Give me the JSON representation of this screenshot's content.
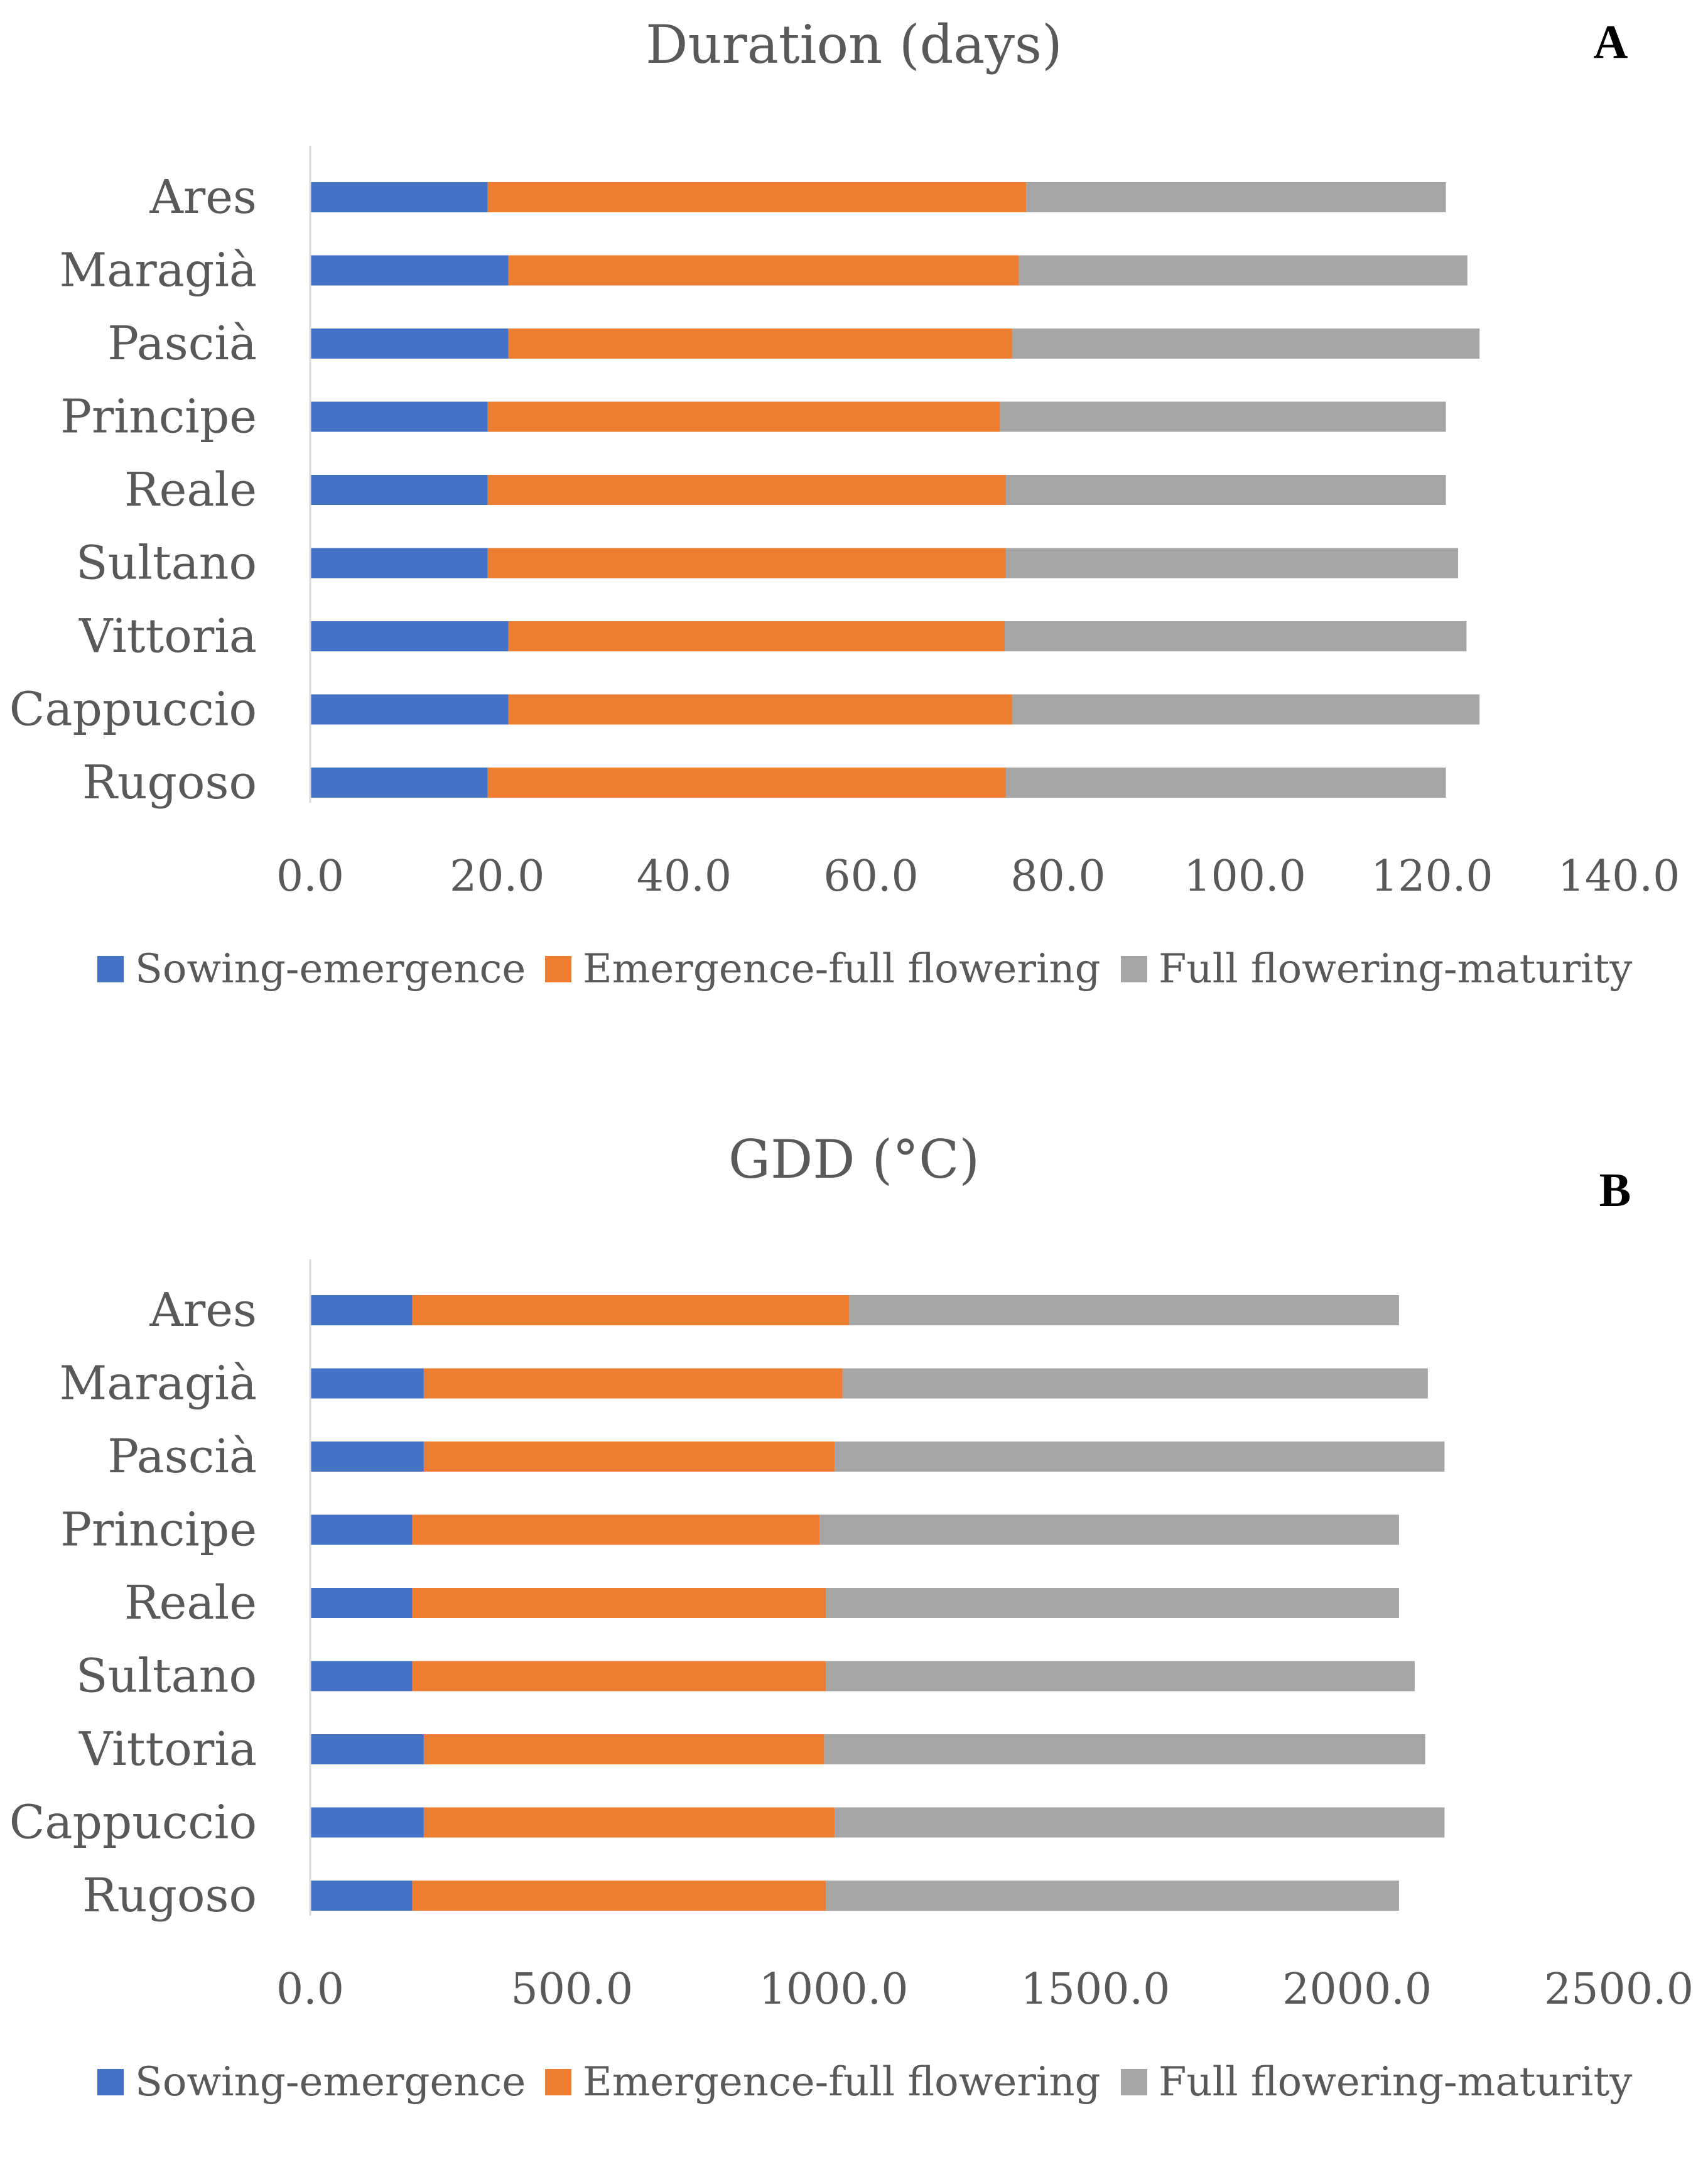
{
  "colors": {
    "sowing": "#4472C4",
    "emergence": "#ED7D31",
    "flowering": "#A5A5A5",
    "axis": "#D9D9D9",
    "text": "#595959"
  },
  "chart_data": [
    {
      "type": "bar",
      "orientation": "horizontal",
      "stacked": true,
      "title": "Duration (days)",
      "panel_label": "A",
      "categories": [
        "Ares",
        "Maragià",
        "Pascià",
        "Principe",
        "Reale",
        "Sultano",
        "Vittoria",
        "Cappuccio",
        "Rugoso"
      ],
      "series": [
        {
          "name": "Sowing-emergence",
          "values": [
            19.0,
            21.2,
            21.2,
            19.0,
            19.0,
            19.0,
            21.2,
            21.2,
            19.0
          ]
        },
        {
          "name": "Emergence-full flowering",
          "values": [
            57.6,
            54.6,
            53.9,
            54.8,
            55.4,
            55.4,
            53.1,
            53.9,
            55.4
          ]
        },
        {
          "name": "Full flowering-maturity",
          "values": [
            44.9,
            48.0,
            50.0,
            47.7,
            47.1,
            48.4,
            49.4,
            50.0,
            47.1
          ]
        }
      ],
      "xlim": [
        0,
        140
      ],
      "xticks": [
        "0.0",
        "20.0",
        "40.0",
        "60.0",
        "80.0",
        "100.0",
        "120.0",
        "140.0"
      ],
      "legend_position": "bottom",
      "grid": false
    },
    {
      "type": "bar",
      "orientation": "horizontal",
      "stacked": true,
      "title": "GDD (°C)",
      "panel_label": "B",
      "categories": [
        "Ares",
        "Maragià",
        "Pascià",
        "Principe",
        "Reale",
        "Sultano",
        "Vittoria",
        "Cappuccio",
        "Rugoso"
      ],
      "series": [
        {
          "name": "Sowing-emergence",
          "values": [
            195,
            217,
            217,
            195,
            195,
            195,
            217,
            217,
            195
          ]
        },
        {
          "name": "Emergence-full flowering",
          "values": [
            835,
            800,
            785,
            778,
            790,
            790,
            765,
            785,
            790
          ]
        },
        {
          "name": "Full flowering-maturity",
          "values": [
            1050,
            1118,
            1165,
            1107,
            1095,
            1125,
            1148,
            1165,
            1095
          ]
        }
      ],
      "xlim": [
        0,
        2500
      ],
      "xticks": [
        "0.0",
        "500.0",
        "1000.0",
        "1500.0",
        "2000.0",
        "2500.0"
      ],
      "legend_position": "bottom",
      "grid": false
    }
  ]
}
